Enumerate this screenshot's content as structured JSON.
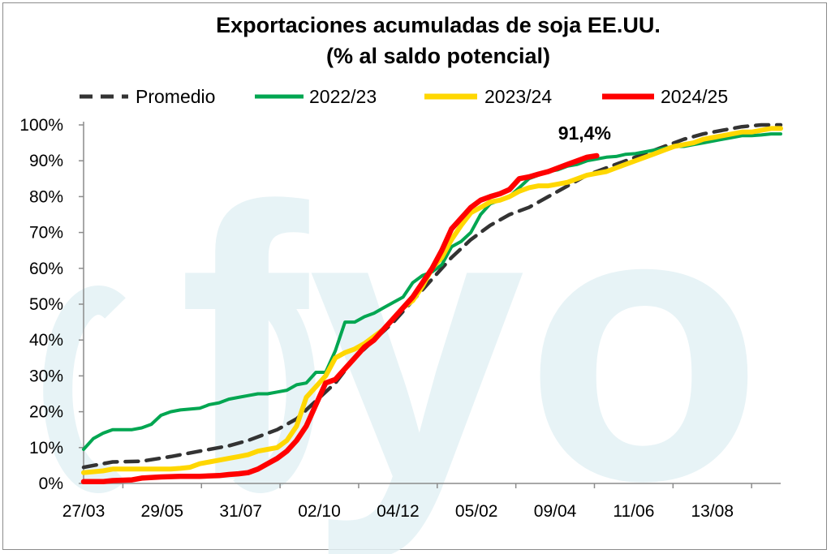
{
  "watermark": "fyo",
  "chart_data": {
    "type": "line",
    "title": "Exportaciones acumuladas de soja EE.UU.",
    "subtitle": "(% al saldo potencial)",
    "xlabel": "",
    "ylabel": "",
    "x_tick_labels": [
      "27/03",
      "29/05",
      "31/07",
      "02/10",
      "04/12",
      "05/02",
      "09/04",
      "11/06",
      "13/08"
    ],
    "y_tick_labels": [
      "0%",
      "10%",
      "20%",
      "30%",
      "40%",
      "50%",
      "60%",
      "70%",
      "80%",
      "90%",
      "100%"
    ],
    "ylim": [
      0,
      100
    ],
    "week_range": [
      0,
      72
    ],
    "grid": false,
    "legend_position": "top",
    "annotation": {
      "text": "91,4%",
      "x": 53,
      "y": 91.4
    },
    "series": [
      {
        "name": "Promedio",
        "color": "#333333",
        "style": "dashed",
        "points": [
          [
            0,
            4.5
          ],
          [
            3,
            6
          ],
          [
            6,
            6.2
          ],
          [
            9,
            7.5
          ],
          [
            12,
            9
          ],
          [
            15,
            10.5
          ],
          [
            17,
            12
          ],
          [
            20,
            15
          ],
          [
            22,
            18
          ],
          [
            24,
            23
          ],
          [
            26,
            28
          ],
          [
            28,
            35
          ],
          [
            30,
            40
          ],
          [
            32,
            45
          ],
          [
            34,
            51
          ],
          [
            36,
            57
          ],
          [
            38,
            63
          ],
          [
            40,
            68
          ],
          [
            42,
            72
          ],
          [
            44,
            75
          ],
          [
            46,
            77
          ],
          [
            48,
            80
          ],
          [
            50,
            83
          ],
          [
            52,
            86
          ],
          [
            54,
            88
          ],
          [
            56,
            90
          ],
          [
            58,
            92
          ],
          [
            60,
            94
          ],
          [
            62,
            96
          ],
          [
            64,
            97.5
          ],
          [
            66,
            98.5
          ],
          [
            68,
            99.5
          ],
          [
            70,
            100
          ],
          [
            72,
            100
          ]
        ]
      },
      {
        "name": "2022/23",
        "color": "#00a651",
        "style": "solid",
        "points": [
          [
            0,
            9.5
          ],
          [
            1,
            12.5
          ],
          [
            2,
            14
          ],
          [
            3,
            15
          ],
          [
            5,
            15
          ],
          [
            6,
            15.5
          ],
          [
            7,
            16.5
          ],
          [
            8,
            19
          ],
          [
            9,
            20
          ],
          [
            10,
            20.5
          ],
          [
            12,
            21
          ],
          [
            13,
            22
          ],
          [
            14,
            22.5
          ],
          [
            15,
            23.5
          ],
          [
            16,
            24
          ],
          [
            17,
            24.5
          ],
          [
            18,
            25
          ],
          [
            19,
            25
          ],
          [
            20,
            25.5
          ],
          [
            21,
            26
          ],
          [
            22,
            27.5
          ],
          [
            23,
            28
          ],
          [
            24,
            31
          ],
          [
            25,
            31
          ],
          [
            26,
            37
          ],
          [
            27,
            45
          ],
          [
            28,
            45
          ],
          [
            29,
            46.5
          ],
          [
            30,
            47.5
          ],
          [
            31,
            49
          ],
          [
            32,
            50.5
          ],
          [
            33,
            52
          ],
          [
            34,
            56
          ],
          [
            35,
            58
          ],
          [
            36,
            59
          ],
          [
            37,
            61
          ],
          [
            38,
            66
          ],
          [
            39,
            67.5
          ],
          [
            40,
            70
          ],
          [
            41,
            75
          ],
          [
            42,
            78
          ],
          [
            43,
            79
          ],
          [
            44,
            80
          ],
          [
            45,
            82.5
          ],
          [
            46,
            85
          ],
          [
            47,
            86
          ],
          [
            48,
            87
          ],
          [
            49,
            87.5
          ],
          [
            50,
            88.5
          ],
          [
            51,
            89
          ],
          [
            52,
            90
          ],
          [
            53,
            90.5
          ],
          [
            54,
            91
          ],
          [
            55,
            91.2
          ],
          [
            56,
            91.8
          ],
          [
            57,
            92
          ],
          [
            58,
            92.5
          ],
          [
            59,
            93
          ],
          [
            60,
            93.5
          ],
          [
            61,
            94
          ],
          [
            62,
            94
          ],
          [
            63,
            94.5
          ],
          [
            64,
            95
          ],
          [
            65,
            95.5
          ],
          [
            66,
            96
          ],
          [
            67,
            96.5
          ],
          [
            68,
            97
          ],
          [
            69,
            97
          ],
          [
            70,
            97.2
          ],
          [
            71,
            97.5
          ],
          [
            72,
            97.5
          ]
        ]
      },
      {
        "name": "2023/24",
        "color": "#ffd700",
        "style": "solid",
        "points": [
          [
            0,
            3
          ],
          [
            2,
            3.5
          ],
          [
            3,
            4
          ],
          [
            5,
            4
          ],
          [
            6,
            4
          ],
          [
            8,
            4
          ],
          [
            9,
            4
          ],
          [
            10,
            4.2
          ],
          [
            11,
            4.5
          ],
          [
            12,
            5.5
          ],
          [
            13,
            6
          ],
          [
            14,
            6.5
          ],
          [
            15,
            7
          ],
          [
            16,
            7.5
          ],
          [
            17,
            8
          ],
          [
            18,
            9
          ],
          [
            19,
            9.5
          ],
          [
            20,
            10
          ],
          [
            21,
            12
          ],
          [
            22,
            16
          ],
          [
            23,
            24
          ],
          [
            24,
            27
          ],
          [
            25,
            30
          ],
          [
            26,
            35
          ],
          [
            27,
            36.5
          ],
          [
            28,
            37.5
          ],
          [
            29,
            39
          ],
          [
            30,
            41
          ],
          [
            31,
            43
          ],
          [
            32,
            46
          ],
          [
            33,
            49
          ],
          [
            34,
            51
          ],
          [
            35,
            55
          ],
          [
            36,
            60
          ],
          [
            37,
            63
          ],
          [
            38,
            68
          ],
          [
            39,
            72
          ],
          [
            40,
            75.5
          ],
          [
            41,
            77
          ],
          [
            42,
            78.5
          ],
          [
            43,
            79
          ],
          [
            44,
            80
          ],
          [
            45,
            81.5
          ],
          [
            46,
            82.5
          ],
          [
            47,
            83
          ],
          [
            48,
            83
          ],
          [
            49,
            83.5
          ],
          [
            50,
            84
          ],
          [
            51,
            85
          ],
          [
            52,
            86
          ],
          [
            53,
            86.5
          ],
          [
            54,
            87
          ],
          [
            55,
            88
          ],
          [
            56,
            89
          ],
          [
            57,
            90
          ],
          [
            58,
            91
          ],
          [
            59,
            92
          ],
          [
            60,
            93
          ],
          [
            61,
            94
          ],
          [
            62,
            94.5
          ],
          [
            63,
            95
          ],
          [
            64,
            96
          ],
          [
            65,
            96.5
          ],
          [
            66,
            97
          ],
          [
            67,
            97.5
          ],
          [
            68,
            98
          ],
          [
            69,
            98
          ],
          [
            70,
            98.5
          ],
          [
            71,
            99
          ],
          [
            72,
            99
          ]
        ]
      },
      {
        "name": "2024/25",
        "color": "#ff0000",
        "style": "solid",
        "points": [
          [
            0,
            0.5
          ],
          [
            2,
            0.5
          ],
          [
            3,
            0.8
          ],
          [
            5,
            1
          ],
          [
            6,
            1.5
          ],
          [
            8,
            1.8
          ],
          [
            10,
            2
          ],
          [
            12,
            2
          ],
          [
            14,
            2.2
          ],
          [
            15,
            2.5
          ],
          [
            16,
            2.7
          ],
          [
            17,
            3
          ],
          [
            18,
            4
          ],
          [
            19,
            5.5
          ],
          [
            20,
            7
          ],
          [
            21,
            9
          ],
          [
            22,
            12
          ],
          [
            23,
            16
          ],
          [
            24,
            22
          ],
          [
            25,
            28
          ],
          [
            26,
            29
          ],
          [
            27,
            32
          ],
          [
            28,
            35
          ],
          [
            29,
            38
          ],
          [
            30,
            40
          ],
          [
            31,
            43
          ],
          [
            32,
            46
          ],
          [
            33,
            49
          ],
          [
            34,
            52
          ],
          [
            35,
            56
          ],
          [
            36,
            60
          ],
          [
            37,
            65
          ],
          [
            38,
            71
          ],
          [
            39,
            74
          ],
          [
            40,
            77
          ],
          [
            41,
            79
          ],
          [
            42,
            80
          ],
          [
            43,
            80.8
          ],
          [
            44,
            82
          ],
          [
            45,
            85
          ],
          [
            46,
            85.5
          ],
          [
            47,
            86.3
          ],
          [
            48,
            87
          ],
          [
            49,
            88
          ],
          [
            50,
            89
          ],
          [
            51,
            90
          ],
          [
            52,
            91
          ],
          [
            53,
            91.4
          ]
        ]
      }
    ]
  }
}
